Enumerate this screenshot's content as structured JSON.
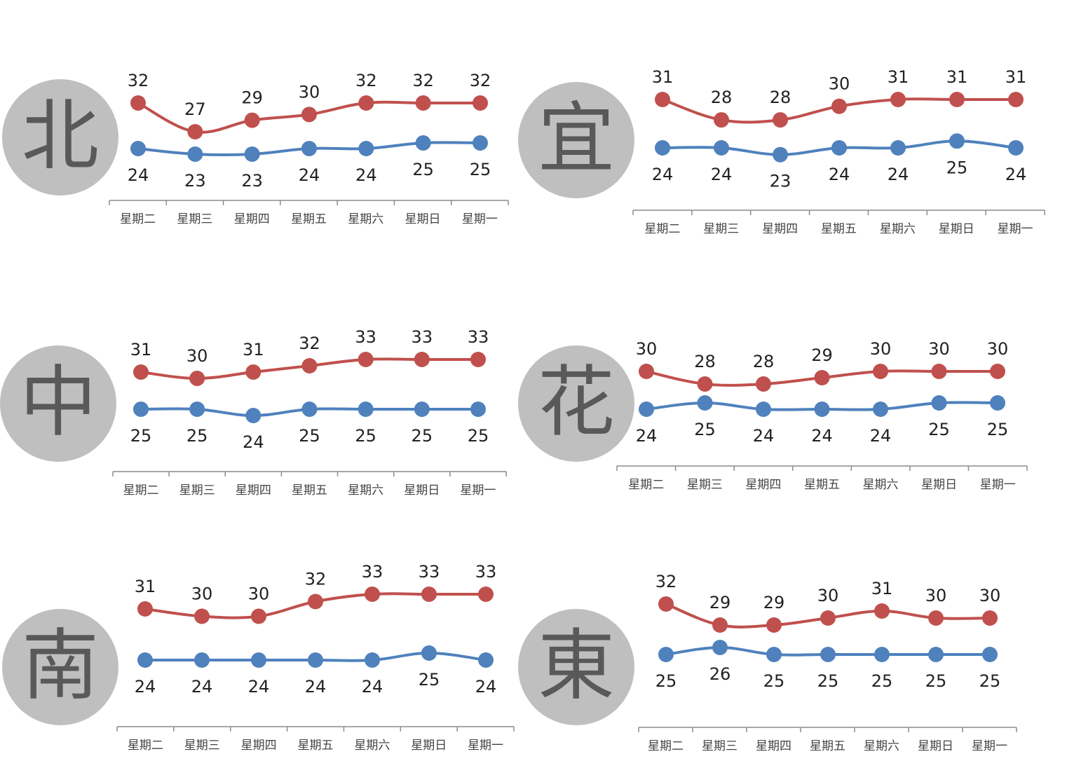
{
  "chart_data": [
    {
      "type": "line",
      "region": "北",
      "categories": [
        "星期二",
        "星期三",
        "星期四",
        "星期五",
        "星期六",
        "星期日",
        "星期一"
      ],
      "series": [
        {
          "color": "#c0504d",
          "values": [
            32,
            27,
            29,
            30,
            32,
            32,
            32
          ]
        },
        {
          "color": "#4f81bd",
          "values": [
            24,
            23,
            23,
            24,
            24,
            25,
            25
          ]
        }
      ]
    },
    {
      "type": "line",
      "region": "宜",
      "categories": [
        "星期二",
        "星期三",
        "星期四",
        "星期五",
        "星期六",
        "星期日",
        "星期一"
      ],
      "series": [
        {
          "color": "#c0504d",
          "values": [
            31,
            28,
            28,
            30,
            31,
            31,
            31
          ]
        },
        {
          "color": "#4f81bd",
          "values": [
            24,
            24,
            23,
            24,
            24,
            25,
            24
          ]
        }
      ]
    },
    {
      "type": "line",
      "region": "中",
      "categories": [
        "星期二",
        "星期三",
        "星期四",
        "星期五",
        "星期六",
        "星期日",
        "星期一"
      ],
      "series": [
        {
          "color": "#c0504d",
          "values": [
            31,
            30,
            31,
            32,
            33,
            33,
            33
          ]
        },
        {
          "color": "#4f81bd",
          "values": [
            25,
            25,
            24,
            25,
            25,
            25,
            25
          ]
        }
      ]
    },
    {
      "type": "line",
      "region": "花",
      "categories": [
        "星期二",
        "星期三",
        "星期四",
        "星期五",
        "星期六",
        "星期日",
        "星期一"
      ],
      "series": [
        {
          "color": "#c0504d",
          "values": [
            30,
            28,
            28,
            29,
            30,
            30,
            30
          ]
        },
        {
          "color": "#4f81bd",
          "values": [
            24,
            25,
            24,
            24,
            24,
            25,
            25
          ]
        }
      ]
    },
    {
      "type": "line",
      "region": "南",
      "categories": [
        "星期二",
        "星期三",
        "星期四",
        "星期五",
        "星期六",
        "星期日",
        "星期一"
      ],
      "series": [
        {
          "color": "#c0504d",
          "values": [
            31,
            30,
            30,
            32,
            33,
            33,
            33
          ]
        },
        {
          "color": "#4f81bd",
          "values": [
            24,
            24,
            24,
            24,
            24,
            25,
            24
          ]
        }
      ]
    },
    {
      "type": "line",
      "region": "東",
      "categories": [
        "星期二",
        "星期三",
        "星期四",
        "星期五",
        "星期六",
        "星期日",
        "星期一"
      ],
      "series": [
        {
          "color": "#c0504d",
          "values": [
            32,
            29,
            29,
            30,
            31,
            30,
            30
          ]
        },
        {
          "color": "#4f81bd",
          "values": [
            25,
            26,
            25,
            25,
            25,
            25,
            25
          ]
        }
      ]
    }
  ]
}
